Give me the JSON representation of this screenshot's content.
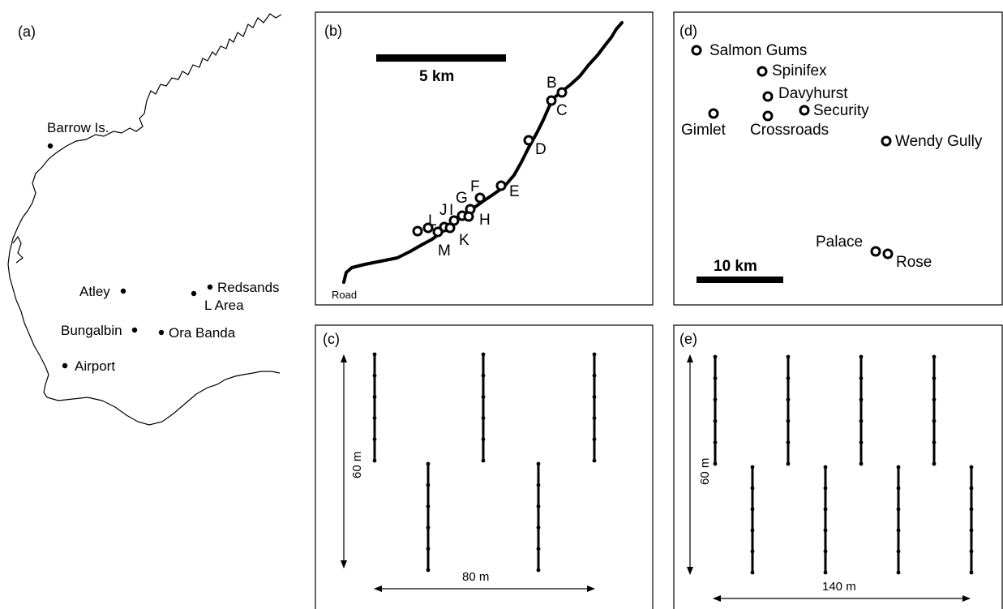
{
  "panels": {
    "a": {
      "label": "(a)",
      "places": [
        "Barrow Is.",
        "Atley",
        "Redsands",
        "L Area",
        "Bungalbin",
        "Ora Banda",
        "Airport"
      ]
    },
    "b": {
      "label": "(b)",
      "scale": "5 km",
      "road": "Road",
      "sites": [
        "B",
        "C",
        "D",
        "E",
        "F",
        "G",
        "J",
        "I",
        "L",
        "H",
        "K",
        "M"
      ]
    },
    "c": {
      "label": "(c)",
      "height": "60 m",
      "width": "80 m"
    },
    "d": {
      "label": "(d)",
      "scale": "10 km",
      "sites": [
        "Salmon Gums",
        "Spinifex",
        "Davyhurst",
        "Security",
        "Gimlet",
        "Crossroads",
        "Wendy Gully",
        "Palace",
        "Rose"
      ]
    },
    "e": {
      "label": "(e)",
      "height": "60 m",
      "width": "140 m"
    }
  }
}
